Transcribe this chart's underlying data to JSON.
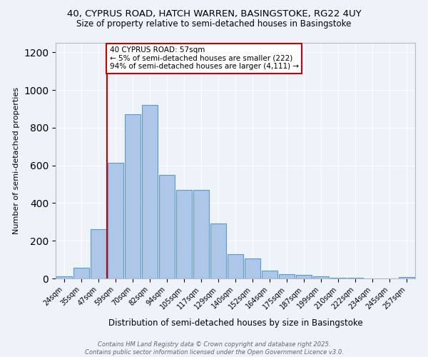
{
  "title1": "40, CYPRUS ROAD, HATCH WARREN, BASINGSTOKE, RG22 4UY",
  "title2": "Size of property relative to semi-detached houses in Basingstoke",
  "xlabel": "Distribution of semi-detached houses by size in Basingstoke",
  "ylabel": "Number of semi-detached properties",
  "bar_labels": [
    "24sqm",
    "35sqm",
    "47sqm",
    "59sqm",
    "70sqm",
    "82sqm",
    "94sqm",
    "105sqm",
    "117sqm",
    "129sqm",
    "140sqm",
    "152sqm",
    "164sqm",
    "175sqm",
    "187sqm",
    "199sqm",
    "210sqm",
    "222sqm",
    "234sqm",
    "245sqm",
    "257sqm"
  ],
  "bar_values": [
    10,
    58,
    260,
    615,
    870,
    920,
    550,
    470,
    470,
    290,
    130,
    105,
    42,
    22,
    18,
    12,
    4,
    2,
    1,
    1,
    8
  ],
  "bar_color": "#aec6e8",
  "bar_edge_color": "#5b9bd5",
  "vline_color": "#cc0000",
  "annotation_text": "40 CYPRUS ROAD: 57sqm\n← 5% of semi-detached houses are smaller (222)\n94% of semi-detached houses are larger (4,111) →",
  "annotation_box_color": "#ffffff",
  "annotation_box_edge": "#cc0000",
  "ylim": [
    0,
    1250
  ],
  "yticks": [
    0,
    200,
    400,
    600,
    800,
    1000,
    1200
  ],
  "footer1": "Contains HM Land Registry data © Crown copyright and database right 2025.",
  "footer2": "Contains public sector information licensed under the Open Government Licence v3.0.",
  "bg_color": "#eef2f9"
}
